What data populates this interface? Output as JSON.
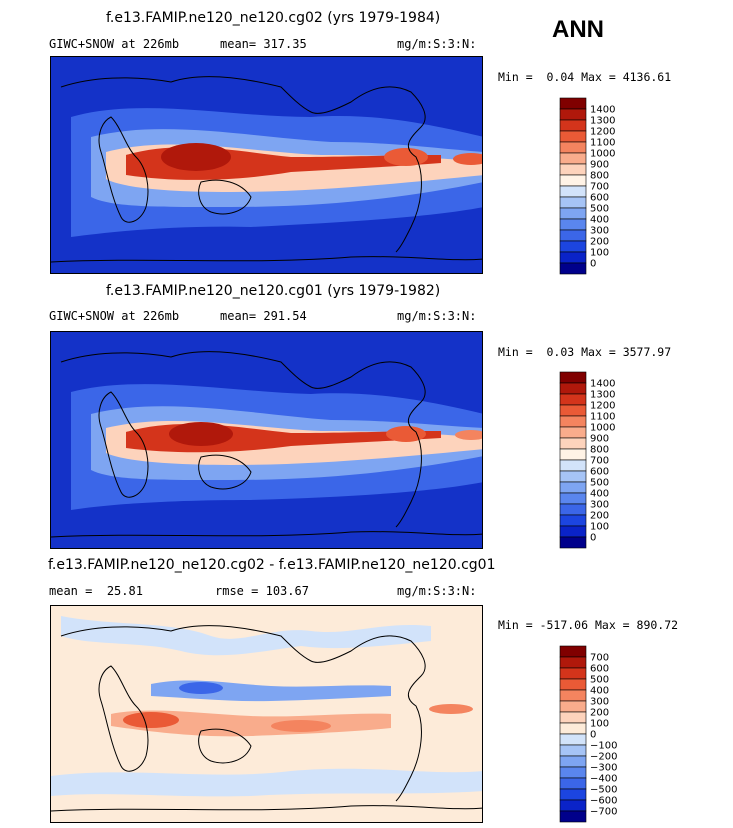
{
  "season": "ANN",
  "colors": {
    "sequential": [
      "#00008b",
      "#0a23c8",
      "#1c45e0",
      "#3b66e8",
      "#5a86ee",
      "#7ea5f2",
      "#a6c4f6",
      "#d2e3fa",
      "#fff3e6",
      "#fdd3bc",
      "#f9ac8c",
      "#f4845f",
      "#ea5a36",
      "#d4341b",
      "#b0180b",
      "#800000"
    ],
    "diverging": [
      "#00008b",
      "#0a23c8",
      "#1c45e0",
      "#3b66e8",
      "#5a86ee",
      "#7ea5f2",
      "#a6c4f6",
      "#d2e3fa",
      "#fdebd9",
      "#fdd3bc",
      "#f9ac8c",
      "#f4845f",
      "#ea5a36",
      "#d4341b",
      "#b0180b",
      "#800000"
    ],
    "coast": "#000000"
  },
  "chart_data": [
    {
      "type": "heatmap",
      "title": "f.e13.FAMIP.ne120_ne120.cg02 (yrs 1979-1984)",
      "variable": "GIWC+SNOW at 226mb",
      "mean_label": "mean=",
      "mean": "317.35",
      "units": "mg/m:S:3:N:",
      "min_label": "Min =",
      "min": "0.04",
      "max_label": "Max =",
      "max": "4136.61",
      "levels": [
        "1400",
        "1300",
        "1200",
        "1100",
        "1000",
        "900",
        "800",
        "700",
        "600",
        "500",
        "400",
        "300",
        "200",
        "100",
        "0"
      ],
      "palette": "sequential"
    },
    {
      "type": "heatmap",
      "title": "f.e13.FAMIP.ne120_ne120.cg01 (yrs 1979-1982)",
      "variable": "GIWC+SNOW at 226mb",
      "mean_label": "mean=",
      "mean": "291.54",
      "units": "mg/m:S:3:N:",
      "min_label": "Min =",
      "min": "0.03",
      "max_label": "Max =",
      "max": "3577.97",
      "levels": [
        "1400",
        "1300",
        "1200",
        "1100",
        "1000",
        "900",
        "800",
        "700",
        "600",
        "500",
        "400",
        "300",
        "200",
        "100",
        "0"
      ],
      "palette": "sequential"
    },
    {
      "type": "heatmap",
      "title": "f.e13.FAMIP.ne120_ne120.cg02 - f.e13.FAMIP.ne120_ne120.cg01",
      "mean_label": "mean =",
      "mean": "25.81",
      "rmse_label": "rmse =",
      "rmse": "103.67",
      "units": "mg/m:S:3:N:",
      "min_label": "Min =",
      "min": "-517.06",
      "max_label": "Max =",
      "max": "890.72",
      "levels": [
        "700",
        "600",
        "500",
        "400",
        "300",
        "200",
        "100",
        "0",
        "-100",
        "-200",
        "-300",
        "-400",
        "-500",
        "-600",
        "-700"
      ],
      "palette": "diverging"
    }
  ]
}
